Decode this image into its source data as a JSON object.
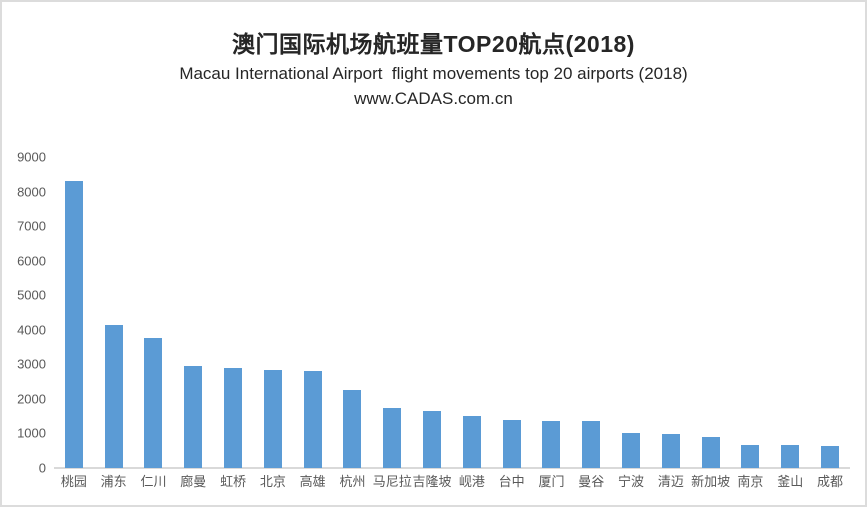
{
  "colors": {
    "bar": "#5b9bd5",
    "axis_line": "#d9d9d9",
    "tick_text": "#595959",
    "frame_border": "#dcdcdc"
  },
  "chart_data": {
    "type": "bar",
    "title": "澳门国际机场航班量TOP20航点(2018)",
    "subtitle": "Macau International Airport  flight movements top 20 airports (2018)",
    "watermark": "www.CADAS.com.cn",
    "categories": [
      "桃园",
      "浦东",
      "仁川",
      "廊曼",
      "虹桥",
      "北京",
      "高雄",
      "杭州",
      "马尼拉",
      "吉隆坡",
      "岘港",
      "台中",
      "厦门",
      "曼谷",
      "宁波",
      "清迈",
      "新加坡",
      "南京",
      "釜山",
      "成都"
    ],
    "values": [
      8300,
      4150,
      3750,
      2950,
      2900,
      2850,
      2800,
      2250,
      1750,
      1650,
      1500,
      1400,
      1370,
      1370,
      1000,
      980,
      890,
      660,
      660,
      650
    ],
    "xlabel": "",
    "ylabel": "",
    "ylim": [
      0,
      9000
    ],
    "y_ticks": [
      0,
      1000,
      2000,
      3000,
      4000,
      5000,
      6000,
      7000,
      8000,
      9000
    ],
    "grid": false,
    "legend": false
  }
}
